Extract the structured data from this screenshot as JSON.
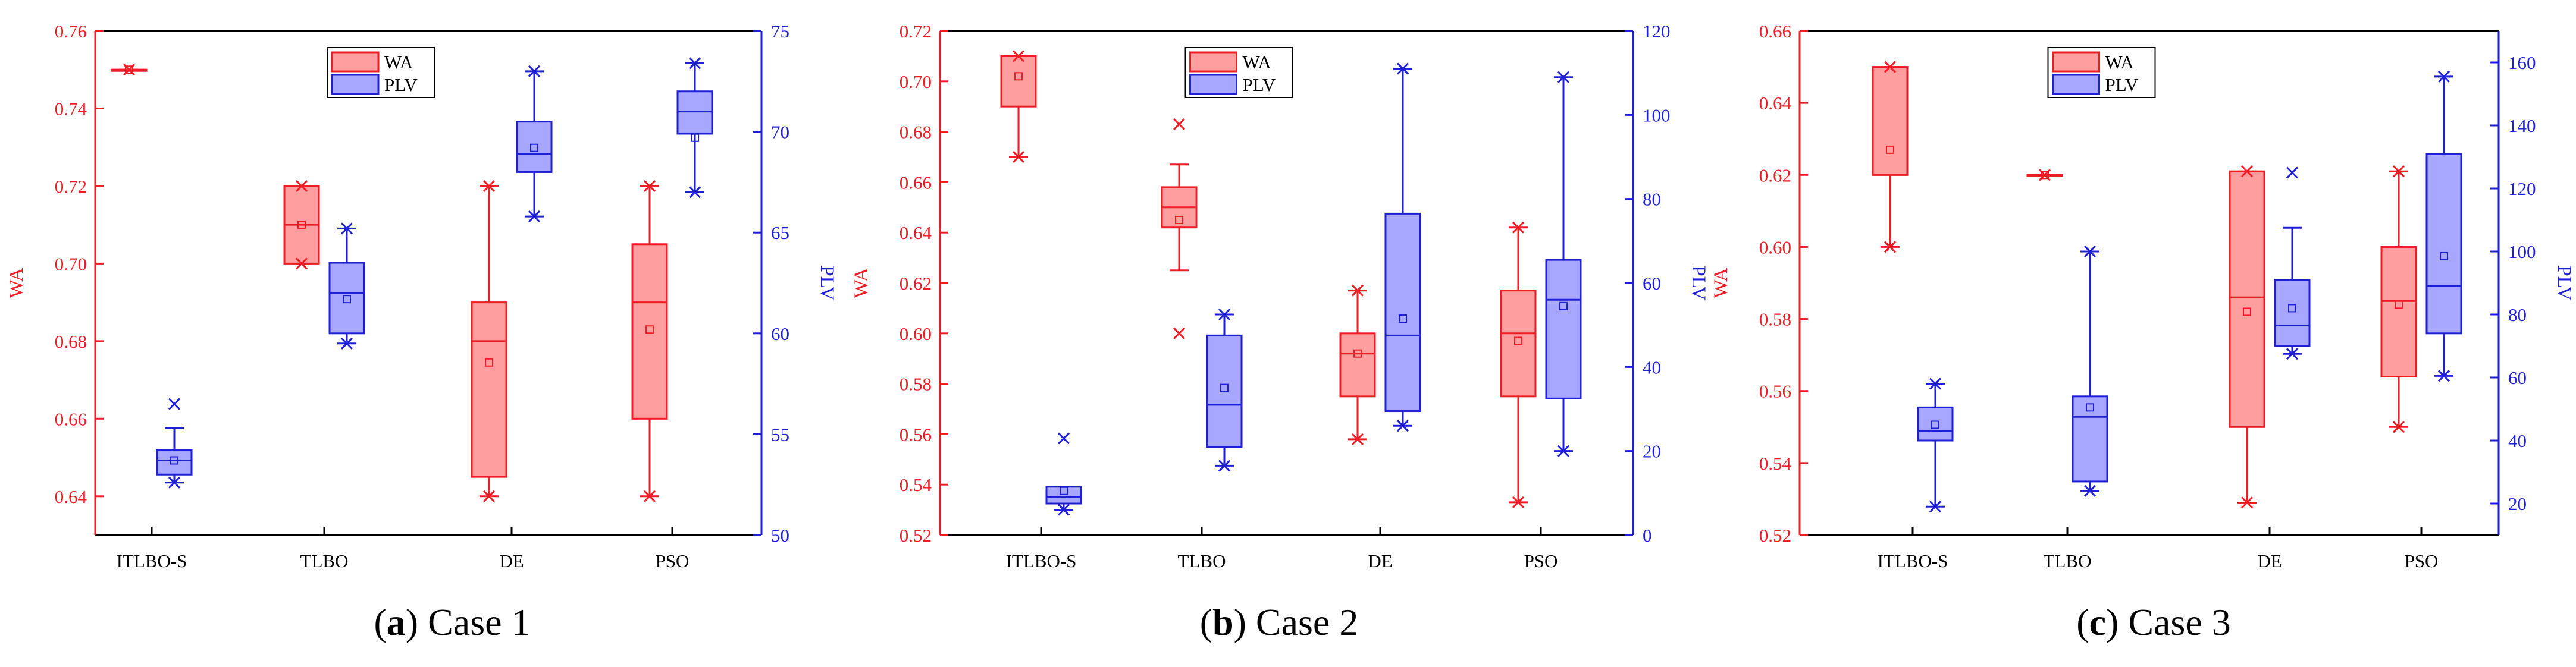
{
  "figure": {
    "colors": {
      "wa_stroke": "#ee1c25",
      "wa_fill": "#ff9e9e",
      "plv_stroke": "#1f1fd6",
      "plv_fill": "#a7a7ff",
      "axis": "#000000"
    }
  },
  "chart_data": [
    {
      "type": "box",
      "caption_label": "a",
      "caption_text": " Case 1",
      "categories": [
        "ITLBO-S",
        "TLBO",
        "DE",
        "PSO"
      ],
      "legend": [
        "WA",
        "PLV"
      ],
      "left_axis": {
        "label": "WA",
        "min": 0.63,
        "max": 0.76,
        "ticks": [
          0.64,
          0.66,
          0.68,
          0.7,
          0.72,
          0.74,
          0.76
        ],
        "tick_labels": [
          "0.64",
          "0.66",
          "0.68",
          "0.70",
          "0.72",
          "0.74",
          "0.76"
        ]
      },
      "right_axis": {
        "label": "PLV",
        "min": 50,
        "max": 75,
        "ticks": [
          50,
          55,
          60,
          65,
          70,
          75
        ],
        "tick_labels": [
          "50",
          "55",
          "60",
          "65",
          "70",
          "75"
        ]
      },
      "series": [
        {
          "name": "WA",
          "boxes": [
            {
              "q1": 0.75,
              "median": 0.75,
              "q3": 0.75,
              "low": 0.75,
              "high": 0.75,
              "mean": 0.75,
              "outliers": [
                0.75
              ]
            },
            {
              "q1": 0.7,
              "median": 0.71,
              "q3": 0.72,
              "low": 0.7,
              "high": 0.72,
              "mean": 0.71,
              "outliers": [
                0.72,
                0.7
              ]
            },
            {
              "q1": 0.645,
              "median": 0.68,
              "q3": 0.69,
              "low": 0.64,
              "high": 0.72,
              "mean": 0.6745,
              "outliers": [
                0.72,
                0.64
              ]
            },
            {
              "q1": 0.66,
              "median": 0.69,
              "q3": 0.705,
              "low": 0.64,
              "high": 0.72,
              "mean": 0.683,
              "outliers": [
                0.72,
                0.64
              ]
            }
          ]
        },
        {
          "name": "PLV",
          "boxes": [
            {
              "q1": 53.0,
              "median": 53.7,
              "q3": 54.2,
              "low": 52.6,
              "high": 55.3,
              "mean": 53.7,
              "outliers": [
                56.5,
                52.6
              ]
            },
            {
              "q1": 60.0,
              "median": 62.0,
              "q3": 63.5,
              "low": 59.5,
              "high": 65.2,
              "mean": 61.7,
              "outliers": [
                65.2,
                59.5
              ]
            },
            {
              "q1": 68.0,
              "median": 68.9,
              "q3": 70.5,
              "low": 65.8,
              "high": 73.0,
              "mean": 69.2,
              "outliers": [
                73.0,
                65.8
              ]
            },
            {
              "q1": 69.9,
              "median": 71.0,
              "q3": 72.0,
              "low": 67.0,
              "high": 73.4,
              "mean": 69.7,
              "outliers": [
                73.4,
                67.0
              ]
            }
          ]
        }
      ]
    },
    {
      "type": "box",
      "caption_label": "b",
      "caption_text": " Case 2",
      "categories": [
        "ITLBO-S",
        "TLBO",
        "DE",
        "PSO"
      ],
      "legend": [
        "WA",
        "PLV"
      ],
      "left_axis": {
        "label": "WA",
        "min": 0.52,
        "max": 0.72,
        "ticks": [
          0.52,
          0.54,
          0.56,
          0.58,
          0.6,
          0.62,
          0.64,
          0.66,
          0.68,
          0.7,
          0.72
        ],
        "tick_labels": [
          "0.52",
          "0.54",
          "0.56",
          "0.58",
          "0.60",
          "0.62",
          "0.64",
          "0.66",
          "0.68",
          "0.70",
          "0.72"
        ]
      },
      "right_axis": {
        "label": "PLV",
        "min": 0,
        "max": 120,
        "ticks": [
          0,
          20,
          40,
          60,
          80,
          100,
          120
        ],
        "tick_labels": [
          "0",
          "20",
          "40",
          "60",
          "80",
          "100",
          "120"
        ]
      },
      "series": [
        {
          "name": "WA",
          "boxes": [
            {
              "q1": 0.69,
              "median": 0.71,
              "q3": 0.71,
              "low": 0.67,
              "high": 0.71,
              "mean": 0.702,
              "outliers": [
                0.71,
                0.67
              ]
            },
            {
              "q1": 0.642,
              "median": 0.65,
              "q3": 0.658,
              "low": 0.625,
              "high": 0.667,
              "mean": 0.645,
              "outliers": [
                0.683,
                0.6
              ]
            },
            {
              "q1": 0.575,
              "median": 0.592,
              "q3": 0.6,
              "low": 0.558,
              "high": 0.617,
              "mean": 0.592,
              "outliers": [
                0.617,
                0.558
              ]
            },
            {
              "q1": 0.575,
              "median": 0.6,
              "q3": 0.617,
              "low": 0.533,
              "high": 0.642,
              "mean": 0.597,
              "outliers": [
                0.642,
                0.533
              ]
            }
          ]
        },
        {
          "name": "PLV",
          "boxes": [
            {
              "q1": 7.5,
              "median": 9.0,
              "q3": 11.5,
              "low": 6.0,
              "high": 11.5,
              "mean": 10.5,
              "outliers": [
                23.0,
                6.0
              ]
            },
            {
              "q1": 21.0,
              "median": 31.0,
              "q3": 47.5,
              "low": 16.5,
              "high": 52.5,
              "mean": 35.0,
              "outliers": [
                52.5,
                16.5
              ]
            },
            {
              "q1": 29.5,
              "median": 47.5,
              "q3": 76.5,
              "low": 26.0,
              "high": 111.0,
              "mean": 51.5,
              "outliers": [
                111.0,
                26.0
              ]
            },
            {
              "q1": 32.5,
              "median": 56.0,
              "q3": 65.5,
              "low": 20.0,
              "high": 109.0,
              "mean": 54.5,
              "outliers": [
                109.0,
                20.0
              ]
            }
          ]
        }
      ]
    },
    {
      "type": "box",
      "caption_label": "c",
      "caption_text": " Case 3",
      "categories": [
        "ITLBO-S",
        "TLBO",
        "DE",
        "PSO"
      ],
      "legend": [
        "WA",
        "PLV"
      ],
      "left_axis": {
        "label": "WA",
        "min": 0.52,
        "max": 0.66,
        "ticks": [
          0.52,
          0.54,
          0.56,
          0.58,
          0.6,
          0.62,
          0.64,
          0.66
        ],
        "tick_labels": [
          "0.52",
          "0.54",
          "0.56",
          "0.58",
          "0.60",
          "0.62",
          "0.64",
          "0.66"
        ]
      },
      "right_axis": {
        "label": "PLV",
        "min": 10,
        "max": 170,
        "ticks": [
          20,
          40,
          60,
          80,
          100,
          120,
          140,
          160
        ],
        "tick_labels": [
          "20",
          "40",
          "60",
          "80",
          "100",
          "120",
          "140",
          "160"
        ]
      },
      "series": [
        {
          "name": "WA",
          "boxes": [
            {
              "q1": 0.62,
              "median": 0.62,
              "q3": 0.65,
              "low": 0.6,
              "high": 0.65,
              "mean": 0.627,
              "outliers": [
                0.65,
                0.6
              ]
            },
            {
              "q1": 0.62,
              "median": 0.62,
              "q3": 0.62,
              "low": 0.62,
              "high": 0.62,
              "mean": 0.62,
              "outliers": [
                0.62
              ]
            },
            {
              "q1": 0.55,
              "median": 0.586,
              "q3": 0.621,
              "low": 0.529,
              "high": 0.621,
              "mean": 0.582,
              "outliers": [
                0.621,
                0.529
              ]
            },
            {
              "q1": 0.564,
              "median": 0.585,
              "q3": 0.6,
              "low": 0.55,
              "high": 0.621,
              "mean": 0.584,
              "outliers": [
                0.621,
                0.55
              ]
            }
          ]
        },
        {
          "name": "PLV",
          "boxes": [
            {
              "q1": 40.0,
              "median": 43.0,
              "q3": 50.5,
              "low": 19.0,
              "high": 58.0,
              "mean": 45.0,
              "outliers": [
                58.0,
                19.0
              ]
            },
            {
              "q1": 27.0,
              "median": 47.5,
              "q3": 54.0,
              "low": 24.0,
              "high": 100.0,
              "mean": 50.5,
              "outliers": [
                100.0,
                24.0
              ]
            },
            {
              "q1": 70.0,
              "median": 76.5,
              "q3": 91.0,
              "low": 67.5,
              "high": 107.5,
              "mean": 82.0,
              "outliers": [
                125.0,
                67.5
              ]
            },
            {
              "q1": 74.0,
              "median": 89.0,
              "q3": 131.0,
              "low": 60.5,
              "high": 155.5,
              "mean": 98.5,
              "outliers": [
                155.5,
                60.5
              ]
            }
          ]
        }
      ]
    }
  ]
}
